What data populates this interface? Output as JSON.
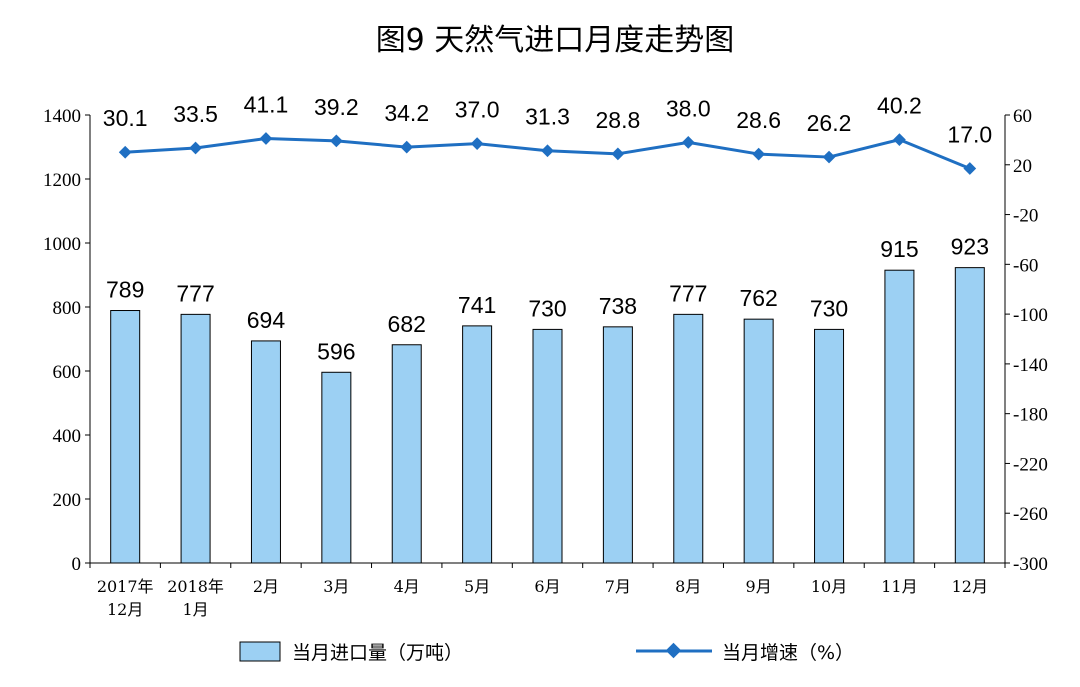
{
  "chart_data": {
    "type": "bar",
    "title": "图9  天然气进口月度走势图",
    "categories": [
      [
        "2017年",
        "12月"
      ],
      [
        "2018年",
        "1月"
      ],
      [
        "2月"
      ],
      [
        "3月"
      ],
      [
        "4月"
      ],
      [
        "5月"
      ],
      [
        "6月"
      ],
      [
        "7月"
      ],
      [
        "8月"
      ],
      [
        "9月"
      ],
      [
        "10月"
      ],
      [
        "11月"
      ],
      [
        "12月"
      ]
    ],
    "series": [
      {
        "name": "当月进口量（万吨）",
        "type": "bar",
        "axis": "left",
        "values": [
          789,
          777,
          694,
          596,
          682,
          741,
          730,
          738,
          777,
          762,
          730,
          915,
          923
        ],
        "color": "#9cd0f3"
      },
      {
        "name": "当月增速（%）",
        "type": "line",
        "axis": "right",
        "values": [
          30.1,
          33.5,
          41.1,
          39.2,
          34.2,
          37.0,
          31.3,
          28.8,
          38.0,
          28.6,
          26.2,
          40.2,
          17.0
        ],
        "color": "#1f6fc2"
      }
    ],
    "y_left": {
      "min": 0,
      "max": 1400,
      "step": 200
    },
    "y_right": {
      "min": -300,
      "max": 60,
      "ticks": [
        60,
        20,
        -20,
        -60,
        -100,
        -140,
        -180,
        -220,
        -260,
        -300
      ]
    },
    "legend_position": "bottom"
  }
}
